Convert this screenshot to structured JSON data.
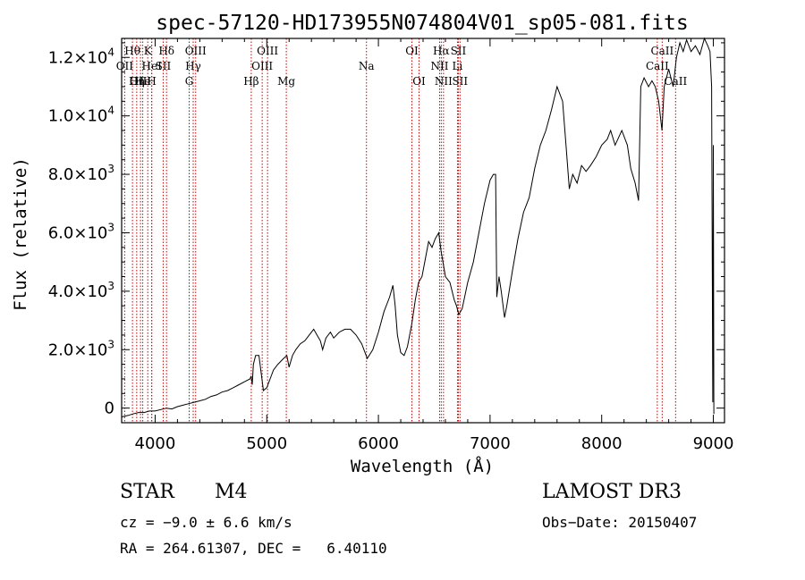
{
  "chart_data": {
    "type": "line",
    "title": "spec-57120-HD173955N074804V01_sp05-081.fits",
    "xlabel": "Wavelength (Å)",
    "ylabel": "Flux (relative)",
    "xlim": [
      3700,
      9100
    ],
    "ylim": [
      -500,
      12650
    ],
    "x_ticks": [
      {
        "value": 4000,
        "label": "4000"
      },
      {
        "value": 5000,
        "label": "5000"
      },
      {
        "value": 6000,
        "label": "6000"
      },
      {
        "value": 7000,
        "label": "7000"
      },
      {
        "value": 8000,
        "label": "8000"
      },
      {
        "value": 9000,
        "label": "9000"
      }
    ],
    "y_ticks": [
      {
        "value": 0,
        "mant": "0",
        "exp": ""
      },
      {
        "value": 2000,
        "mant": "2.0×10",
        "exp": "3"
      },
      {
        "value": 4000,
        "mant": "4.0×10",
        "exp": "3"
      },
      {
        "value": 6000,
        "mant": "6.0×10",
        "exp": "3"
      },
      {
        "value": 8000,
        "mant": "8.0×10",
        "exp": "3"
      },
      {
        "value": 10000,
        "mant": "1.0×10",
        "exp": "4"
      },
      {
        "value": 12000,
        "mant": "1.2×10",
        "exp": "4"
      }
    ],
    "series": [
      {
        "name": "spectrum",
        "points": [
          [
            3700,
            -300
          ],
          [
            3760,
            -250
          ],
          [
            3800,
            -200
          ],
          [
            3850,
            -150
          ],
          [
            3900,
            -150
          ],
          [
            3950,
            -100
          ],
          [
            4000,
            -100
          ],
          [
            4050,
            -50
          ],
          [
            4100,
            0
          ],
          [
            4150,
            -30
          ],
          [
            4200,
            50
          ],
          [
            4250,
            100
          ],
          [
            4300,
            150
          ],
          [
            4350,
            200
          ],
          [
            4400,
            250
          ],
          [
            4450,
            300
          ],
          [
            4500,
            400
          ],
          [
            4550,
            450
          ],
          [
            4600,
            550
          ],
          [
            4650,
            600
          ],
          [
            4700,
            700
          ],
          [
            4750,
            800
          ],
          [
            4800,
            900
          ],
          [
            4850,
            1000
          ],
          [
            4860,
            1100
          ],
          [
            4870,
            800
          ],
          [
            4880,
            1500
          ],
          [
            4900,
            1800
          ],
          [
            4930,
            1800
          ],
          [
            4950,
            1200
          ],
          [
            4970,
            600
          ],
          [
            5000,
            700
          ],
          [
            5030,
            1000
          ],
          [
            5060,
            1300
          ],
          [
            5100,
            1500
          ],
          [
            5150,
            1700
          ],
          [
            5180,
            1800
          ],
          [
            5200,
            1400
          ],
          [
            5230,
            1800
          ],
          [
            5260,
            2000
          ],
          [
            5300,
            2200
          ],
          [
            5340,
            2300
          ],
          [
            5380,
            2500
          ],
          [
            5420,
            2700
          ],
          [
            5450,
            2500
          ],
          [
            5480,
            2300
          ],
          [
            5500,
            2000
          ],
          [
            5530,
            2400
          ],
          [
            5570,
            2600
          ],
          [
            5600,
            2400
          ],
          [
            5650,
            2600
          ],
          [
            5700,
            2700
          ],
          [
            5750,
            2700
          ],
          [
            5800,
            2500
          ],
          [
            5850,
            2200
          ],
          [
            5900,
            1700
          ],
          [
            5950,
            2000
          ],
          [
            6000,
            2600
          ],
          [
            6050,
            3300
          ],
          [
            6100,
            3800
          ],
          [
            6130,
            4200
          ],
          [
            6150,
            3500
          ],
          [
            6170,
            2500
          ],
          [
            6200,
            1900
          ],
          [
            6230,
            1800
          ],
          [
            6260,
            2100
          ],
          [
            6300,
            2900
          ],
          [
            6330,
            3700
          ],
          [
            6360,
            4300
          ],
          [
            6390,
            4500
          ],
          [
            6420,
            5100
          ],
          [
            6450,
            5700
          ],
          [
            6480,
            5500
          ],
          [
            6510,
            5800
          ],
          [
            6540,
            6000
          ],
          [
            6560,
            5400
          ],
          [
            6600,
            4500
          ],
          [
            6640,
            4300
          ],
          [
            6680,
            3700
          ],
          [
            6700,
            3500
          ],
          [
            6720,
            3200
          ],
          [
            6750,
            3400
          ],
          [
            6800,
            4300
          ],
          [
            6850,
            5000
          ],
          [
            6900,
            6000
          ],
          [
            6950,
            7000
          ],
          [
            7000,
            7800
          ],
          [
            7030,
            8000
          ],
          [
            7050,
            8000
          ],
          [
            7060,
            3800
          ],
          [
            7080,
            4500
          ],
          [
            7100,
            4000
          ],
          [
            7130,
            3100
          ],
          [
            7150,
            3500
          ],
          [
            7200,
            4700
          ],
          [
            7250,
            5800
          ],
          [
            7300,
            6700
          ],
          [
            7350,
            7200
          ],
          [
            7400,
            8200
          ],
          [
            7450,
            9000
          ],
          [
            7500,
            9500
          ],
          [
            7550,
            10200
          ],
          [
            7600,
            11000
          ],
          [
            7650,
            10500
          ],
          [
            7680,
            9000
          ],
          [
            7710,
            7500
          ],
          [
            7740,
            8000
          ],
          [
            7780,
            7700
          ],
          [
            7820,
            8300
          ],
          [
            7860,
            8100
          ],
          [
            7900,
            8300
          ],
          [
            7950,
            8600
          ],
          [
            8000,
            9000
          ],
          [
            8050,
            9200
          ],
          [
            8080,
            9500
          ],
          [
            8120,
            9000
          ],
          [
            8180,
            9500
          ],
          [
            8230,
            9000
          ],
          [
            8260,
            8200
          ],
          [
            8300,
            7700
          ],
          [
            8330,
            7100
          ],
          [
            8350,
            11000
          ],
          [
            8380,
            11300
          ],
          [
            8420,
            11000
          ],
          [
            8450,
            11200
          ],
          [
            8480,
            11000
          ],
          [
            8510,
            10500
          ],
          [
            8540,
            9500
          ],
          [
            8560,
            11000
          ],
          [
            8600,
            11600
          ],
          [
            8640,
            11000
          ],
          [
            8670,
            12000
          ],
          [
            8700,
            12500
          ],
          [
            8730,
            12200
          ],
          [
            8760,
            12600
          ],
          [
            8800,
            12200
          ],
          [
            8840,
            12400
          ],
          [
            8880,
            12100
          ],
          [
            8920,
            12700
          ],
          [
            8950,
            12400
          ],
          [
            8970,
            12200
          ],
          [
            8985,
            11000
          ],
          [
            8995,
            200
          ],
          [
            9000,
            9000
          ],
          [
            9005,
            -200
          ]
        ]
      }
    ],
    "spectral_lines": [
      {
        "label": "Hθ",
        "wl": 3797,
        "row": 1
      },
      {
        "label": "OII",
        "wl": 3727,
        "row": 2
      },
      {
        "label": "OIII",
        "wl": 3869,
        "row": 3
      },
      {
        "label": "He",
        "wl": 3889,
        "row": 3
      },
      {
        "label": "K",
        "wl": 3934,
        "row": 1
      },
      {
        "label": "HeI",
        "wl": 3970,
        "row": 2
      },
      {
        "label": "SII",
        "wl": 4072,
        "row": 2
      },
      {
        "label": "Hη",
        "wl": 3835,
        "row": 3
      },
      {
        "label": "H",
        "wl": 3969,
        "row": 3
      },
      {
        "label": "Hδ",
        "wl": 4102,
        "row": 1
      },
      {
        "label": "OIII",
        "wl": 4363,
        "row": 1
      },
      {
        "label": "Hγ",
        "wl": 4341,
        "row": 2
      },
      {
        "label": "G",
        "wl": 4305,
        "row": 3
      },
      {
        "label": "Hβ",
        "wl": 4861,
        "row": 3
      },
      {
        "label": "OIII",
        "wl": 4959,
        "row": 2
      },
      {
        "label": "OIII",
        "wl": 5007,
        "row": 1
      },
      {
        "label": "Mg",
        "wl": 5175,
        "row": 3
      },
      {
        "label": "Na",
        "wl": 5893,
        "row": 2
      },
      {
        "label": "OI",
        "wl": 6300,
        "row": 1
      },
      {
        "label": "OI",
        "wl": 6364,
        "row": 3
      },
      {
        "label": "Hα",
        "wl": 6563,
        "row": 1
      },
      {
        "label": "NII",
        "wl": 6548,
        "row": 2
      },
      {
        "label": "NII",
        "wl": 6583,
        "row": 3
      },
      {
        "label": "SII",
        "wl": 6716,
        "row": 1
      },
      {
        "label": "Li",
        "wl": 6708,
        "row": 2
      },
      {
        "label": "SII",
        "wl": 6731,
        "row": 3
      },
      {
        "label": "CaII",
        "wl": 8542,
        "row": 1
      },
      {
        "label": "CaII",
        "wl": 8498,
        "row": 2
      },
      {
        "label": "CaII",
        "wl": 8662,
        "row": 3
      }
    ]
  },
  "info": {
    "class": "STAR",
    "subclass": "M4",
    "survey": "LAMOST DR3",
    "cz": "cz = −9.0 ± 6.6 km/s",
    "obs_date": "Obs−Date: 20150407",
    "radec": "RA = 264.61307, DEC =   6.40110"
  }
}
